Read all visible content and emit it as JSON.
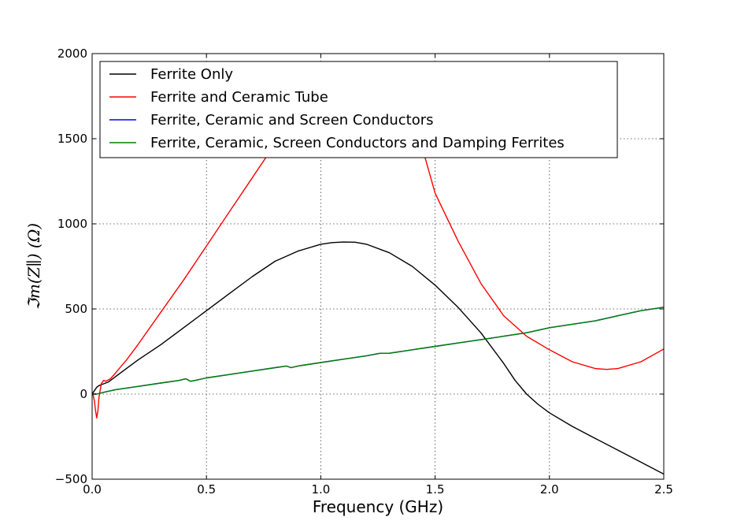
{
  "chart_data": {
    "type": "line",
    "title": "",
    "xlabel": "Frequency (GHz)",
    "ylabel": "ℑm(Z∥) (Ω)",
    "xlim": [
      0.0,
      2.5
    ],
    "ylim": [
      -500,
      2000
    ],
    "xticks": [
      0.0,
      0.5,
      1.0,
      1.5,
      2.0,
      2.5
    ],
    "xtick_labels": [
      "0.0",
      "0.5",
      "1.0",
      "1.5",
      "2.0",
      "2.5"
    ],
    "yticks": [
      -500,
      0,
      500,
      1000,
      1500,
      2000
    ],
    "ytick_labels": [
      "−500",
      "0",
      "500",
      "1000",
      "1500",
      "2000"
    ],
    "grid": true,
    "legend_position": "top-left",
    "series": [
      {
        "name": "Ferrite Only",
        "color": "#000000",
        "x": [
          0.0,
          0.01,
          0.02,
          0.03,
          0.04,
          0.05,
          0.07,
          0.1,
          0.15,
          0.2,
          0.3,
          0.4,
          0.5,
          0.6,
          0.7,
          0.8,
          0.9,
          1.0,
          1.05,
          1.1,
          1.15,
          1.2,
          1.3,
          1.4,
          1.5,
          1.6,
          1.7,
          1.8,
          1.85,
          1.9,
          1.95,
          2.0,
          2.1,
          2.2,
          2.3,
          2.4,
          2.5
        ],
        "y": [
          0,
          20,
          40,
          50,
          55,
          60,
          70,
          100,
          150,
          200,
          290,
          390,
          490,
          590,
          690,
          780,
          840,
          880,
          890,
          893,
          892,
          880,
          830,
          750,
          640,
          510,
          360,
          180,
          80,
          0,
          -60,
          -110,
          -190,
          -260,
          -330,
          -400,
          -470
        ]
      },
      {
        "name": "Ferrite and Ceramic Tube",
        "color": "#ff0000",
        "x": [
          0.0,
          0.005,
          0.01,
          0.015,
          0.02,
          0.025,
          0.03,
          0.04,
          0.05,
          0.06,
          0.08,
          0.1,
          0.15,
          0.2,
          0.3,
          0.4,
          0.5,
          0.6,
          0.7,
          0.8,
          0.85,
          1.42,
          1.5,
          1.6,
          1.7,
          1.8,
          1.9,
          2.0,
          2.1,
          2.2,
          2.25,
          2.3,
          2.4,
          2.5
        ],
        "y": [
          0,
          -10,
          -40,
          -100,
          -140,
          -100,
          -20,
          60,
          80,
          75,
          90,
          120,
          200,
          290,
          480,
          670,
          870,
          1070,
          1270,
          1470,
          1570,
          1560,
          1180,
          900,
          650,
          460,
          340,
          260,
          190,
          150,
          145,
          150,
          190,
          265
        ]
      },
      {
        "name": "Ferrite, Ceramic and Screen Conductors",
        "color": "#0000ff",
        "x": [
          0.0,
          0.02,
          0.05,
          0.1,
          0.2,
          0.3,
          0.38,
          0.41,
          0.43,
          0.45,
          0.5,
          0.6,
          0.7,
          0.8,
          0.85,
          0.87,
          0.9,
          1.0,
          1.1,
          1.2,
          1.26,
          1.28,
          1.3,
          1.4,
          1.5,
          1.6,
          1.7,
          1.8,
          1.9,
          2.0,
          2.1,
          2.2,
          2.3,
          2.4,
          2.5
        ],
        "y": [
          0,
          0,
          10,
          25,
          45,
          65,
          80,
          90,
          75,
          80,
          95,
          115,
          135,
          155,
          165,
          155,
          165,
          185,
          205,
          225,
          240,
          240,
          240,
          260,
          280,
          300,
          320,
          340,
          360,
          390,
          410,
          430,
          460,
          490,
          510
        ]
      },
      {
        "name": "Ferrite, Ceramic, Screen Conductors and Damping Ferrites",
        "color": "#008000",
        "x": [
          0.0,
          0.02,
          0.05,
          0.1,
          0.2,
          0.3,
          0.38,
          0.41,
          0.43,
          0.45,
          0.5,
          0.6,
          0.7,
          0.8,
          0.85,
          0.87,
          0.9,
          1.0,
          1.1,
          1.2,
          1.26,
          1.28,
          1.3,
          1.4,
          1.5,
          1.6,
          1.7,
          1.8,
          1.9,
          2.0,
          2.1,
          2.2,
          2.3,
          2.4,
          2.5
        ],
        "y": [
          0,
          0,
          10,
          25,
          45,
          65,
          80,
          90,
          75,
          80,
          95,
          115,
          135,
          155,
          165,
          155,
          165,
          185,
          205,
          225,
          240,
          240,
          240,
          260,
          280,
          300,
          320,
          340,
          360,
          390,
          410,
          430,
          460,
          490,
          510
        ]
      }
    ]
  }
}
